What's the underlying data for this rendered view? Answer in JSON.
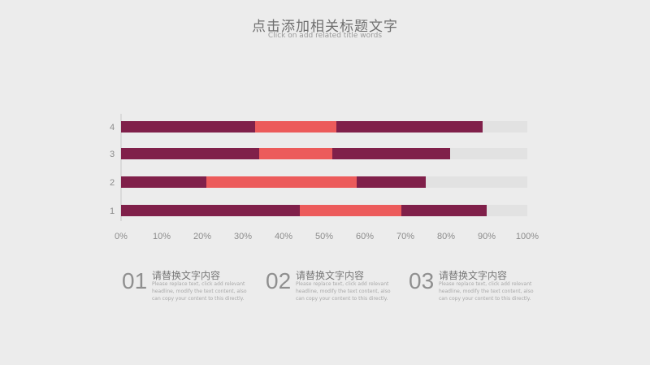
{
  "header": {
    "title": "点击添加相关标题文字",
    "subtitle": "Click on add related title words"
  },
  "chart_data": {
    "type": "bar",
    "orientation": "horizontal",
    "stacked": true,
    "categories": [
      "1",
      "2",
      "3",
      "4"
    ],
    "series": [
      {
        "color": "#80204a",
        "values": [
          44,
          21,
          34,
          33
        ]
      },
      {
        "color": "#ec5b5b",
        "values": [
          25,
          37,
          18,
          20
        ]
      },
      {
        "color": "#80204a",
        "values": [
          21,
          17,
          29,
          36
        ]
      },
      {
        "color": "#e2e2e2",
        "values": [
          10,
          25,
          19,
          11
        ]
      }
    ],
    "xlim": [
      0,
      100
    ],
    "xticks": [
      "0%",
      "10%",
      "20%",
      "30%",
      "40%",
      "50%",
      "60%",
      "70%",
      "80%",
      "90%",
      "100%"
    ],
    "grid": false
  },
  "items": [
    {
      "number": "01",
      "heading": "请替换文字内容",
      "text": "Please replace text, click add relevant headline, modify the text content, also can copy your content to this directly."
    },
    {
      "number": "02",
      "heading": "请替换文字内容",
      "text": "Please replace text, click add relevant headline, modify the text content, also can copy your content to this directly."
    },
    {
      "number": "03",
      "heading": "请替换文字内容",
      "text": "Please replace text, click add relevant headline, modify the text content, also can copy your content to this directly."
    }
  ]
}
